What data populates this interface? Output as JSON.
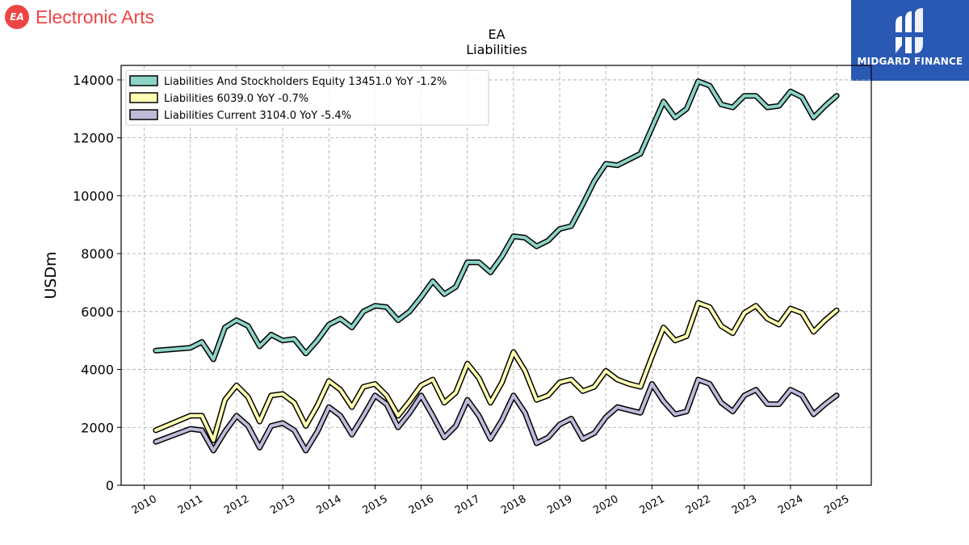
{
  "brand": {
    "name": "Electronic Arts",
    "logo_text": "EA",
    "color": "#ef4444"
  },
  "watermark": {
    "name": "MIDGARD FINANCE",
    "background": "#2a59b4"
  },
  "chart_data": {
    "type": "line",
    "title": "EA",
    "subtitle": "Liabilities",
    "ylabel": "USDm",
    "xlabel": "",
    "xlim": [
      2009.5,
      2025.75
    ],
    "ylim": [
      0,
      14500
    ],
    "yticks": [
      0,
      2000,
      4000,
      6000,
      8000,
      10000,
      12000,
      14000
    ],
    "xticks": [
      2010,
      2011,
      2012,
      2013,
      2014,
      2015,
      2016,
      2017,
      2018,
      2019,
      2020,
      2021,
      2022,
      2023,
      2024,
      2025
    ],
    "grid": true,
    "legend_position": "top-left",
    "series": [
      {
        "name": "Liabilities And Stockholders Equity",
        "legend": "Liabilities And Stockholders Equity  13451.0 YoY -1.2%",
        "color": "#8dd3c7",
        "x": [
          2010.25,
          2011.0,
          2011.25,
          2011.5,
          2011.75,
          2012.0,
          2012.25,
          2012.5,
          2012.75,
          2013.0,
          2013.25,
          2013.5,
          2013.75,
          2014.0,
          2014.25,
          2014.5,
          2014.75,
          2015.0,
          2015.25,
          2015.5,
          2015.75,
          2016.0,
          2016.25,
          2016.5,
          2016.75,
          2017.0,
          2017.25,
          2017.5,
          2017.75,
          2018.0,
          2018.25,
          2018.5,
          2018.75,
          2019.0,
          2019.25,
          2019.5,
          2019.75,
          2020.0,
          2020.25,
          2020.5,
          2020.75,
          2021.0,
          2021.25,
          2021.5,
          2021.75,
          2022.0,
          2022.25,
          2022.5,
          2022.75,
          2023.0,
          2023.25,
          2023.5,
          2023.75,
          2024.0,
          2024.25,
          2024.5,
          2024.75,
          2025.0
        ],
        "values": [
          4650,
          4750,
          4950,
          4350,
          5450,
          5700,
          5500,
          4800,
          5200,
          5000,
          5050,
          4550,
          5000,
          5550,
          5750,
          5450,
          6000,
          6200,
          6150,
          5700,
          6000,
          6500,
          7050,
          6600,
          6850,
          7700,
          7700,
          7350,
          7900,
          8600,
          8550,
          8250,
          8450,
          8850,
          8950,
          9700,
          10500,
          11100,
          11050,
          11250,
          11450,
          12350,
          13250,
          12700,
          13000,
          13950,
          13800,
          13150,
          13050,
          13450,
          13450,
          13050,
          13100,
          13600,
          13400,
          12700,
          13100,
          13451
        ]
      },
      {
        "name": "Liabilities",
        "legend": "Liabilities  6039.0 YoY -0.7%",
        "color": "#ffffb3",
        "x": [
          2010.25,
          2011.0,
          2011.25,
          2011.5,
          2011.75,
          2012.0,
          2012.25,
          2012.5,
          2012.75,
          2013.0,
          2013.25,
          2013.5,
          2013.75,
          2014.0,
          2014.25,
          2014.5,
          2014.75,
          2015.0,
          2015.25,
          2015.5,
          2015.75,
          2016.0,
          2016.25,
          2016.5,
          2016.75,
          2017.0,
          2017.25,
          2017.5,
          2017.75,
          2018.0,
          2018.25,
          2018.5,
          2018.75,
          2019.0,
          2019.25,
          2019.5,
          2019.75,
          2020.0,
          2020.25,
          2020.5,
          2020.75,
          2021.0,
          2021.25,
          2021.5,
          2021.75,
          2022.0,
          2022.25,
          2022.5,
          2022.75,
          2023.0,
          2023.25,
          2023.5,
          2023.75,
          2024.0,
          2024.25,
          2024.5,
          2024.75,
          2025.0
        ],
        "values": [
          1900,
          2400,
          2400,
          1550,
          2950,
          3450,
          3050,
          2200,
          3100,
          3150,
          2850,
          2050,
          2750,
          3600,
          3300,
          2700,
          3400,
          3500,
          3100,
          2400,
          2900,
          3450,
          3650,
          2850,
          3200,
          4200,
          3700,
          2850,
          3550,
          4600,
          3950,
          2950,
          3100,
          3550,
          3650,
          3250,
          3400,
          3950,
          3650,
          3500,
          3400,
          4450,
          5450,
          5000,
          5150,
          6300,
          6150,
          5500,
          5250,
          5950,
          6200,
          5750,
          5550,
          6100,
          5950,
          5300,
          5700,
          6039
        ]
      },
      {
        "name": "Liabilities Current",
        "legend": "Liabilities Current  3104.0 YoY -5.4%",
        "color": "#bebada",
        "x": [
          2010.25,
          2011.0,
          2011.25,
          2011.5,
          2011.75,
          2012.0,
          2012.25,
          2012.5,
          2012.75,
          2013.0,
          2013.25,
          2013.5,
          2013.75,
          2014.0,
          2014.25,
          2014.5,
          2014.75,
          2015.0,
          2015.25,
          2015.5,
          2015.75,
          2016.0,
          2016.25,
          2016.5,
          2016.75,
          2017.0,
          2017.25,
          2017.5,
          2017.75,
          2018.0,
          2018.25,
          2018.5,
          2018.75,
          2019.0,
          2019.25,
          2019.5,
          2019.75,
          2020.0,
          2020.25,
          2020.5,
          2020.75,
          2021.0,
          2021.25,
          2021.5,
          2021.75,
          2022.0,
          2022.25,
          2022.5,
          2022.75,
          2023.0,
          2023.25,
          2023.5,
          2023.75,
          2024.0,
          2024.25,
          2024.5,
          2024.75,
          2025.0
        ],
        "values": [
          1500,
          1950,
          1900,
          1200,
          1850,
          2400,
          2050,
          1300,
          2050,
          2150,
          1900,
          1200,
          1850,
          2700,
          2400,
          1750,
          2400,
          3100,
          2800,
          2000,
          2500,
          3100,
          2400,
          1650,
          2050,
          2950,
          2400,
          1600,
          2250,
          3100,
          2500,
          1450,
          1650,
          2100,
          2300,
          1600,
          1800,
          2350,
          2700,
          2600,
          2500,
          3500,
          2900,
          2450,
          2550,
          3650,
          3500,
          2850,
          2550,
          3100,
          3300,
          2800,
          2800,
          3300,
          3100,
          2450,
          2800,
          3104
        ]
      }
    ]
  }
}
